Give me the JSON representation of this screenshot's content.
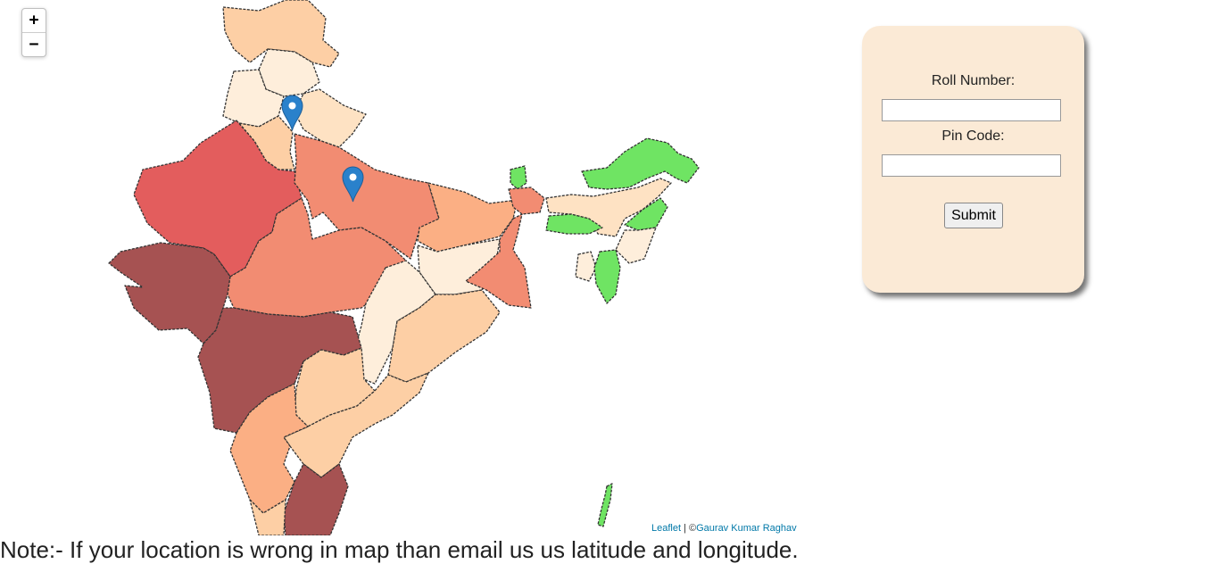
{
  "map": {
    "zoom_in_label": "+",
    "zoom_out_label": "−",
    "attribution_leaflet": "Leaflet",
    "attribution_separator": " | ©",
    "attribution_author": "Gaurav Kumar Raghav",
    "marker_color": "#2a81cb",
    "legend_colors": {
      "darkest": "#a65252",
      "dark": "#e35d5d",
      "medium": "#f28c72",
      "light_orange": "#fbaf84",
      "pale_orange": "#fdcfa5",
      "cream": "#fee2c3",
      "palest": "#feeedb",
      "green": "#6fe463"
    }
  },
  "form": {
    "roll_label": "Roll Number:",
    "roll_value": "",
    "pin_label": "Pin Code:",
    "pin_value": "",
    "submit_label": "Submit"
  },
  "note": "Note:- If your location is wrong in map than email us us latitude and longitude."
}
